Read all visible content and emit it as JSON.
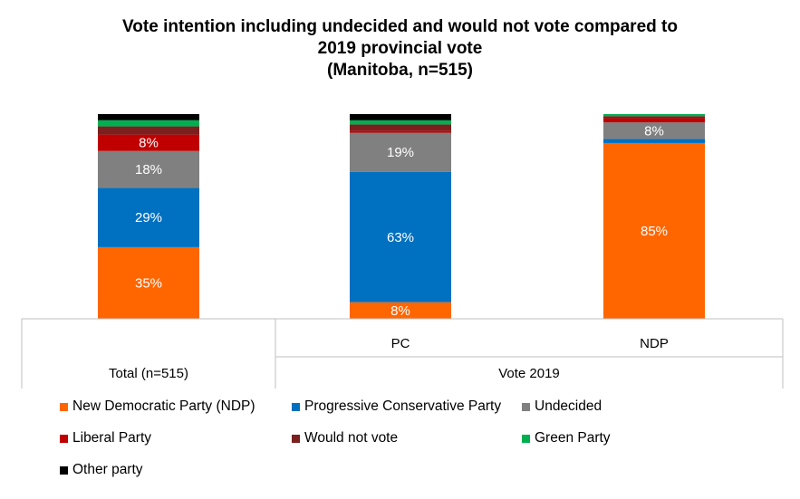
{
  "chart_data": {
    "type": "bar",
    "stacked": true,
    "title_lines": [
      "Vote intention including undecided and would not vote compared to",
      "2019 provincial vote",
      "(Manitoba, n=515)"
    ],
    "categories": [
      "",
      "PC",
      "NDP"
    ],
    "group_labels": [
      "Total (n=515)",
      "Vote 2019"
    ],
    "ylim": [
      0,
      100
    ],
    "grid": false,
    "legend_position": "bottom",
    "series": [
      {
        "name": "New Democratic Party (NDP)",
        "color": "#FF6600",
        "values": [
          35,
          8,
          85
        ],
        "labels": [
          "35%",
          "8%",
          "85%"
        ]
      },
      {
        "name": "Progressive Conservative Party",
        "color": "#0070C0",
        "values": [
          29,
          63,
          2
        ],
        "labels": [
          "29%",
          "63%",
          ""
        ]
      },
      {
        "name": "Undecided",
        "color": "#808080",
        "values": [
          18,
          19,
          8
        ],
        "labels": [
          "18%",
          "19%",
          "8%"
        ]
      },
      {
        "name": "Liberal Party",
        "color": "#C00000",
        "values": [
          8,
          1,
          2
        ],
        "labels": [
          "8%",
          "",
          ""
        ]
      },
      {
        "name": "Would not vote",
        "color": "#7B1F1F",
        "values": [
          4,
          3,
          1
        ],
        "labels": [
          "",
          "",
          ""
        ]
      },
      {
        "name": "Green Party",
        "color": "#00B050",
        "values": [
          3,
          2,
          1
        ],
        "labels": [
          "",
          "",
          ""
        ]
      },
      {
        "name": "Other party",
        "color": "#000000",
        "values": [
          3,
          3,
          0
        ],
        "labels": [
          "",
          "",
          ""
        ]
      }
    ]
  }
}
